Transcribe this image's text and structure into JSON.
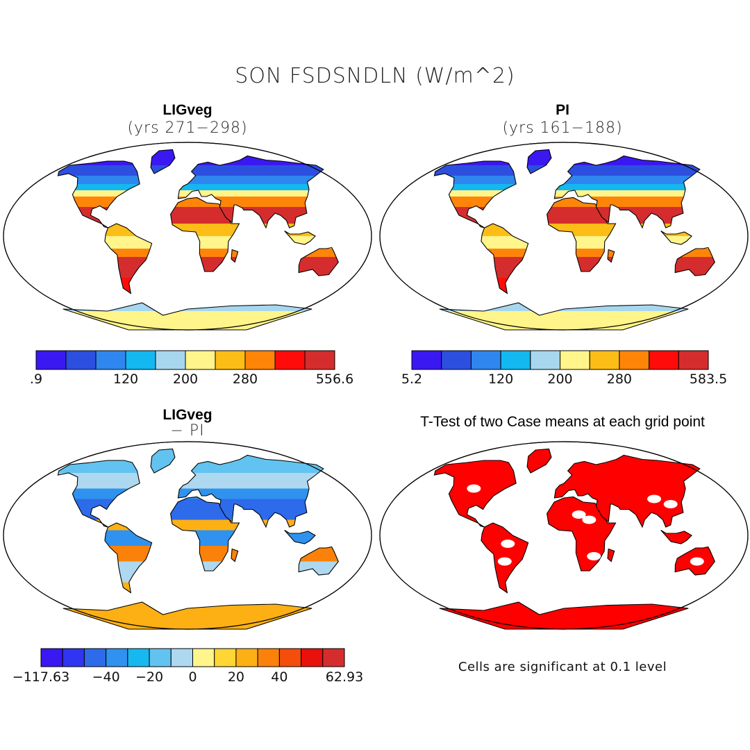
{
  "title": "SON FSDSNDLN (W/m^2)",
  "panels": [
    {
      "id": "ligveg",
      "title": "LIGveg",
      "subtitle": "(yrs 271−298)",
      "colorbar": {
        "labels": [
          ".9",
          "120",
          "200",
          "280",
          "556.6"
        ],
        "colors": [
          "#3a18f2",
          "#2d4fe0",
          "#2f86ee",
          "#13b8f0",
          "#a7d6ef",
          "#fff58a",
          "#fdbd17",
          "#ff8509",
          "#ff0c0a",
          "#d52d2d"
        ]
      }
    },
    {
      "id": "pi",
      "title": "PI",
      "subtitle": "(yrs 161−188)",
      "colorbar": {
        "labels": [
          "5.2",
          "120",
          "200",
          "280",
          "583.5"
        ],
        "colors": [
          "#3a18f2",
          "#2d4fe0",
          "#2f86ee",
          "#13b8f0",
          "#a7d6ef",
          "#fff58a",
          "#fdbd17",
          "#ff8509",
          "#ff0c0a",
          "#d52d2d"
        ]
      }
    },
    {
      "id": "diff",
      "title": "LIGveg",
      "subtitle": "− PI",
      "colorbar": {
        "labels": [
          "−117.63",
          "−40",
          "−20",
          "0",
          "20",
          "40",
          "62.93"
        ],
        "colors": [
          "#3a18f2",
          "#2f35f2",
          "#2d6bea",
          "#2f92ee",
          "#17b8f0",
          "#62c3f0",
          "#add8ef",
          "#fff58a",
          "#ffd633",
          "#fdb014",
          "#fa820a",
          "#f44d0c",
          "#e8110b",
          "#d52d2d"
        ]
      }
    },
    {
      "id": "ttest",
      "title": "T-Test of two Case means at each grid point",
      "note": "Cells are significant at 0.1 level"
    }
  ]
}
